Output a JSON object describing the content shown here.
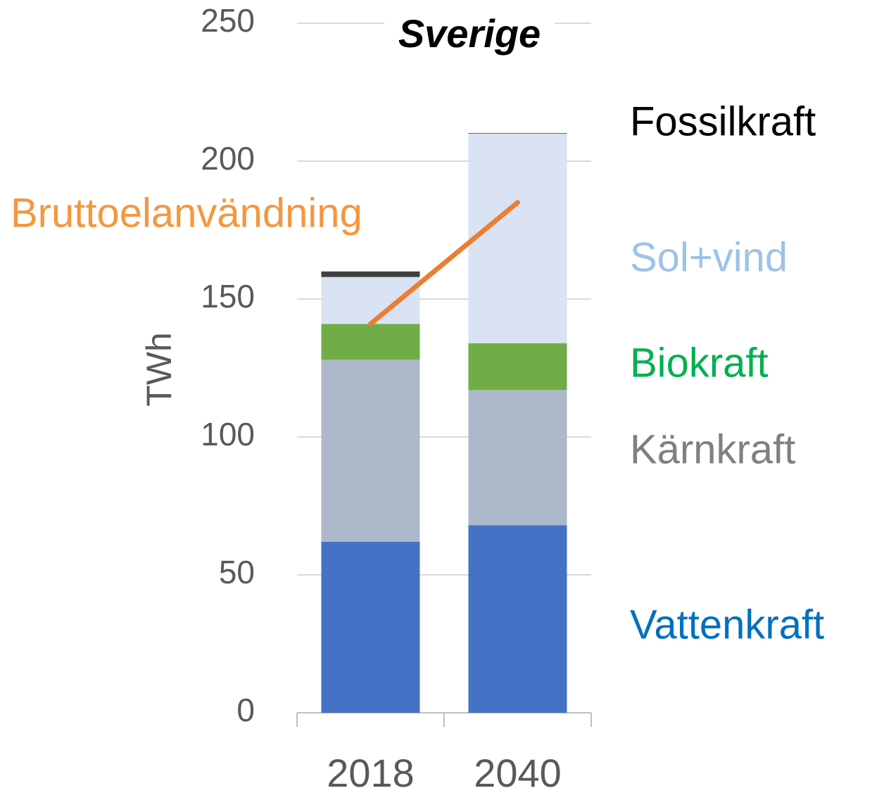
{
  "chart_data": {
    "type": "bar",
    "stacked": true,
    "title": "Sverige",
    "y_label": "TWh",
    "categories": [
      "2018",
      "2040"
    ],
    "ylim": [
      0,
      250
    ],
    "yticks": [
      0,
      50,
      100,
      150,
      200,
      250
    ],
    "grid": true,
    "series": [
      {
        "name": "Vattenkraft",
        "color": "#4472c4",
        "label_color": "#0070c0",
        "values": [
          62,
          68
        ]
      },
      {
        "name": "Kärnkraft",
        "color": "#adb9ca",
        "label_color": "#808080",
        "values": [
          66,
          49
        ]
      },
      {
        "name": "Biokraft",
        "color": "#70ad47",
        "label_color": "#00b050",
        "values": [
          13,
          17
        ]
      },
      {
        "name": "Sol+vind",
        "color": "#dae3f3",
        "label_color": "#9dc3e6",
        "values": [
          17,
          76
        ]
      },
      {
        "name": "Fossilkraft",
        "color": "#404040",
        "label_color": "#000000",
        "values": [
          2,
          0.2
        ]
      },
      {
        "name": "Bruttoelanvändning",
        "type": "line",
        "color": "#ed7d31",
        "label_color": "#f4973d",
        "values": [
          141,
          185
        ]
      }
    ]
  }
}
